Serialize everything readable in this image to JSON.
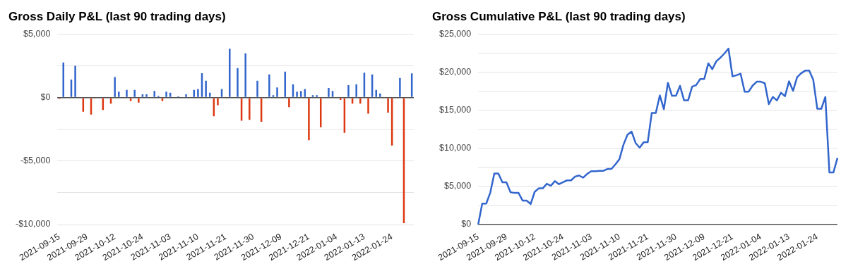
{
  "chart_data": [
    {
      "type": "bar",
      "title": "Gross Daily P&L (last 90 trading days)",
      "categories": [
        "2021-09-15",
        null,
        null,
        null,
        null,
        null,
        null,
        "2021-09-29",
        null,
        null,
        null,
        null,
        null,
        null,
        "2021-10-12",
        null,
        null,
        null,
        null,
        null,
        null,
        "2021-10-24",
        null,
        null,
        null,
        null,
        null,
        null,
        "2021-11-03",
        null,
        null,
        null,
        null,
        null,
        null,
        "2021-11-10",
        null,
        null,
        null,
        null,
        null,
        null,
        "2021-11-21",
        null,
        null,
        null,
        null,
        null,
        null,
        "2021-11-30",
        null,
        null,
        null,
        null,
        null,
        null,
        "2021-12-09",
        null,
        null,
        null,
        null,
        null,
        null,
        "2021-12-21",
        null,
        null,
        null,
        null,
        null,
        null,
        "2022-01-04",
        null,
        null,
        null,
        null,
        null,
        null,
        "2022-01-13",
        null,
        null,
        null,
        null,
        null,
        null,
        "2022-01-24",
        null,
        null,
        null,
        null,
        null
      ],
      "values": [
        -100,
        2760,
        0,
        1420,
        2500,
        0,
        -1110,
        0,
        -1340,
        -80,
        0,
        -980,
        0,
        -480,
        1610,
        460,
        0,
        600,
        -270,
        600,
        -400,
        250,
        250,
        0,
        520,
        130,
        -270,
        460,
        380,
        0,
        100,
        0,
        250,
        0,
        600,
        670,
        1920,
        1320,
        380,
        -1480,
        -600,
        670,
        0,
        3840,
        0,
        2320,
        -1820,
        3490,
        -1750,
        0,
        1320,
        -1900,
        0,
        1820,
        190,
        800,
        0,
        2050,
        -750,
        1040,
        460,
        520,
        670,
        -3360,
        190,
        190,
        -2340,
        0,
        750,
        520,
        0,
        -190,
        -2780,
        980,
        -480,
        1040,
        -480,
        1960,
        -1270,
        1820,
        600,
        330,
        0,
        -1190,
        -3780,
        0,
        1540,
        -9890,
        0,
        1900
      ],
      "colors": [
        "#dc3912",
        "#3366cc",
        "#3366cc",
        "#3366cc",
        "#3366cc",
        "#3366cc",
        "#dc3912",
        "#3366cc",
        "#dc3912",
        "#dc3912",
        "#3366cc",
        "#dc3912",
        "#3366cc",
        "#dc3912",
        "#3366cc",
        "#3366cc",
        "#3366cc",
        "#3366cc",
        "#dc3912",
        "#3366cc",
        "#dc3912",
        "#3366cc",
        "#3366cc",
        "#3366cc",
        "#3366cc",
        "#3366cc",
        "#dc3912",
        "#3366cc",
        "#3366cc",
        "#3366cc",
        "#3366cc",
        "#3366cc",
        "#3366cc",
        "#3366cc",
        "#3366cc",
        "#3366cc",
        "#3366cc",
        "#3366cc",
        "#3366cc",
        "#dc3912",
        "#dc3912",
        "#3366cc",
        "#3366cc",
        "#3366cc",
        "#3366cc",
        "#3366cc",
        "#dc3912",
        "#3366cc",
        "#dc3912",
        "#3366cc",
        "#3366cc",
        "#dc3912",
        "#3366cc",
        "#3366cc",
        "#3366cc",
        "#3366cc",
        "#3366cc",
        "#3366cc",
        "#dc3912",
        "#3366cc",
        "#3366cc",
        "#3366cc",
        "#3366cc",
        "#dc3912",
        "#3366cc",
        "#3366cc",
        "#dc3912",
        "#3366cc",
        "#3366cc",
        "#3366cc",
        "#3366cc",
        "#dc3912",
        "#dc3912",
        "#3366cc",
        "#dc3912",
        "#3366cc",
        "#dc3912",
        "#3366cc",
        "#dc3912",
        "#3366cc",
        "#3366cc",
        "#3366cc",
        "#3366cc",
        "#dc3912",
        "#dc3912",
        "#3366cc",
        "#3366cc",
        "#dc3912",
        "#3366cc",
        "#3366cc"
      ],
      "ylim": [
        -10000,
        5000
      ],
      "yticks": [
        {
          "value": -10000,
          "label": "-$10,000"
        },
        {
          "value": -7500,
          "label": null
        },
        {
          "value": -5000,
          "label": "-$5,000"
        },
        {
          "value": -2500,
          "label": null
        },
        {
          "value": 0,
          "label": "$0"
        },
        {
          "value": 2500,
          "label": null
        },
        {
          "value": 5000,
          "label": "$5,000"
        }
      ],
      "grid": "y"
    },
    {
      "type": "line",
      "title": "Gross Cumulative P&L (last 90 trading days)",
      "categories": [
        "2021-09-15",
        null,
        null,
        null,
        null,
        null,
        null,
        "2021-09-29",
        null,
        null,
        null,
        null,
        null,
        null,
        "2021-10-12",
        null,
        null,
        null,
        null,
        null,
        null,
        "2021-10-24",
        null,
        null,
        null,
        null,
        null,
        null,
        "2021-11-03",
        null,
        null,
        null,
        null,
        null,
        null,
        "2021-11-10",
        null,
        null,
        null,
        null,
        null,
        null,
        "2021-11-21",
        null,
        null,
        null,
        null,
        null,
        null,
        "2021-11-30",
        null,
        null,
        null,
        null,
        null,
        null,
        "2021-12-09",
        null,
        null,
        null,
        null,
        null,
        null,
        "2021-12-21",
        null,
        null,
        null,
        null,
        null,
        null,
        "2022-01-04",
        null,
        null,
        null,
        null,
        null,
        null,
        "2022-01-13",
        null,
        null,
        null,
        null,
        null,
        null,
        "2022-01-24",
        null,
        null,
        null,
        null,
        null
      ],
      "values": [
        0,
        2750,
        2750,
        4200,
        6700,
        6700,
        5550,
        5550,
        4250,
        4150,
        4150,
        3150,
        3150,
        2700,
        4300,
        4750,
        4750,
        5350,
        5100,
        5700,
        5300,
        5550,
        5800,
        5800,
        6300,
        6450,
        6150,
        6650,
        7000,
        7000,
        7050,
        7050,
        7300,
        7300,
        7900,
        8600,
        10500,
        11800,
        12200,
        10700,
        10100,
        10800,
        10800,
        14650,
        14650,
        16950,
        15150,
        18600,
        16900,
        16900,
        18200,
        16300,
        16300,
        18100,
        18300,
        19100,
        19100,
        21150,
        20400,
        21450,
        21900,
        22450,
        23100,
        19450,
        19600,
        19800,
        17450,
        17450,
        18250,
        18750,
        18750,
        18550,
        15800,
        16750,
        16300,
        17300,
        16850,
        18800,
        17550,
        19350,
        19850,
        20200,
        20200,
        19000,
        15200,
        15200,
        16750,
        6850,
        6850,
        8750
      ],
      "color": "#3366cc",
      "marker": "none",
      "line_style": "solid",
      "ylim": [
        0,
        25000
      ],
      "yticks": [
        {
          "value": 0,
          "label": "$0"
        },
        {
          "value": 2500,
          "label": null
        },
        {
          "value": 5000,
          "label": "$5,000"
        },
        {
          "value": 7500,
          "label": null
        },
        {
          "value": 10000,
          "label": "$10,000"
        },
        {
          "value": 12500,
          "label": null
        },
        {
          "value": 15000,
          "label": "$15,000"
        },
        {
          "value": 17500,
          "label": null
        },
        {
          "value": 20000,
          "label": "$20,000"
        },
        {
          "value": 22500,
          "label": null
        },
        {
          "value": 25000,
          "label": "$25,000"
        }
      ],
      "grid": "y"
    }
  ]
}
